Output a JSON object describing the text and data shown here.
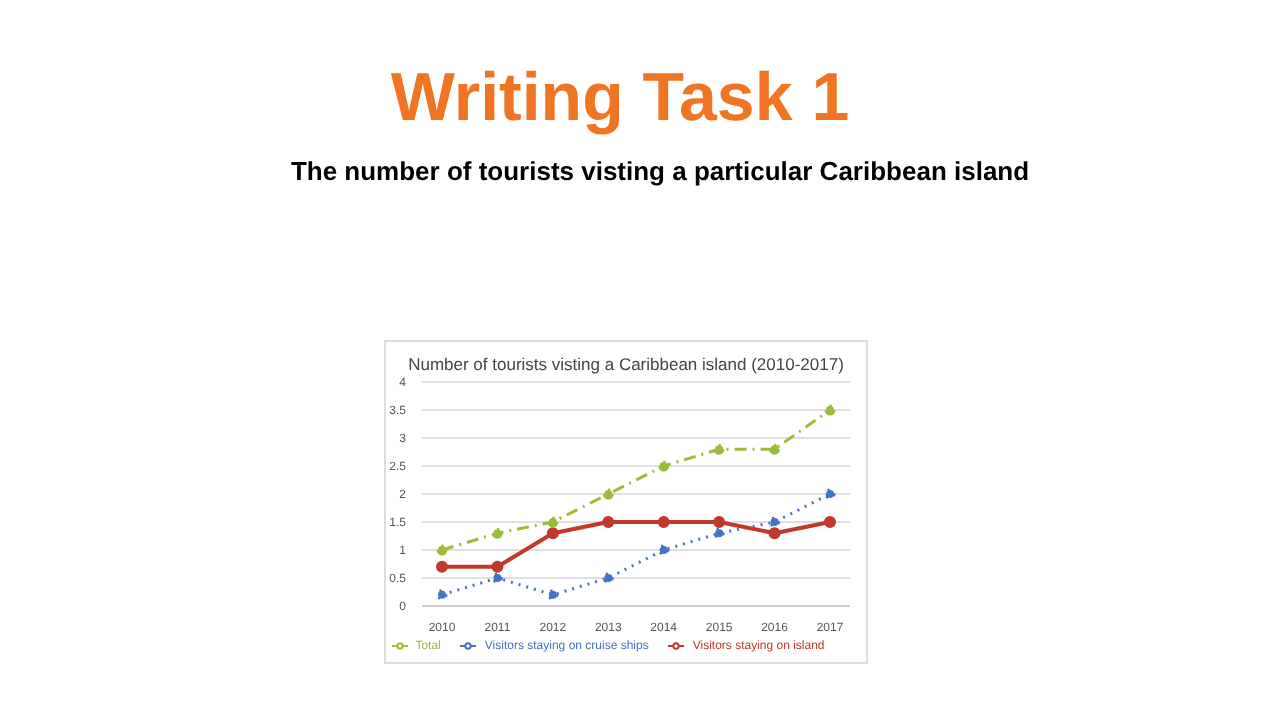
{
  "chart_data": {
    "type": "line",
    "title": "Writing Task 1",
    "subtitle": "The number of tourists visting a particular Caribbean island",
    "annotations": [
      "Number of tourists visting a Caribbean island (2010-2017)"
    ],
    "categories": [
      "2010",
      "2011",
      "2012",
      "2013",
      "2014",
      "2015",
      "2016",
      "2017"
    ],
    "series": [
      {
        "name": "Visitors staying on cruise ships",
        "color": "#4472c4",
        "line_style": "dotted",
        "values": [
          0.2,
          0.5,
          0.2,
          0.5,
          1,
          1.3,
          1.5,
          2
        ]
      },
      {
        "name": "Visitors staying on island",
        "color": "#c0392b",
        "line_style": "solid",
        "values": [
          0.7,
          0.7,
          1.3,
          1.5,
          1.5,
          1.5,
          1.3,
          1.5
        ]
      },
      {
        "name": "Total",
        "color": "#9bbb3b",
        "line_style": "dashed",
        "values": [
          1,
          1.3,
          1.5,
          2,
          2.5,
          2.8,
          2.8,
          3.5
        ]
      }
    ],
    "ylim": [
      0,
      4
    ],
    "yticks": [
      0,
      0.5,
      1,
      1.5,
      2,
      2.5,
      3,
      3.5,
      4
    ],
    "grid": "y",
    "legend": "bottom",
    "marker": "circle"
  }
}
